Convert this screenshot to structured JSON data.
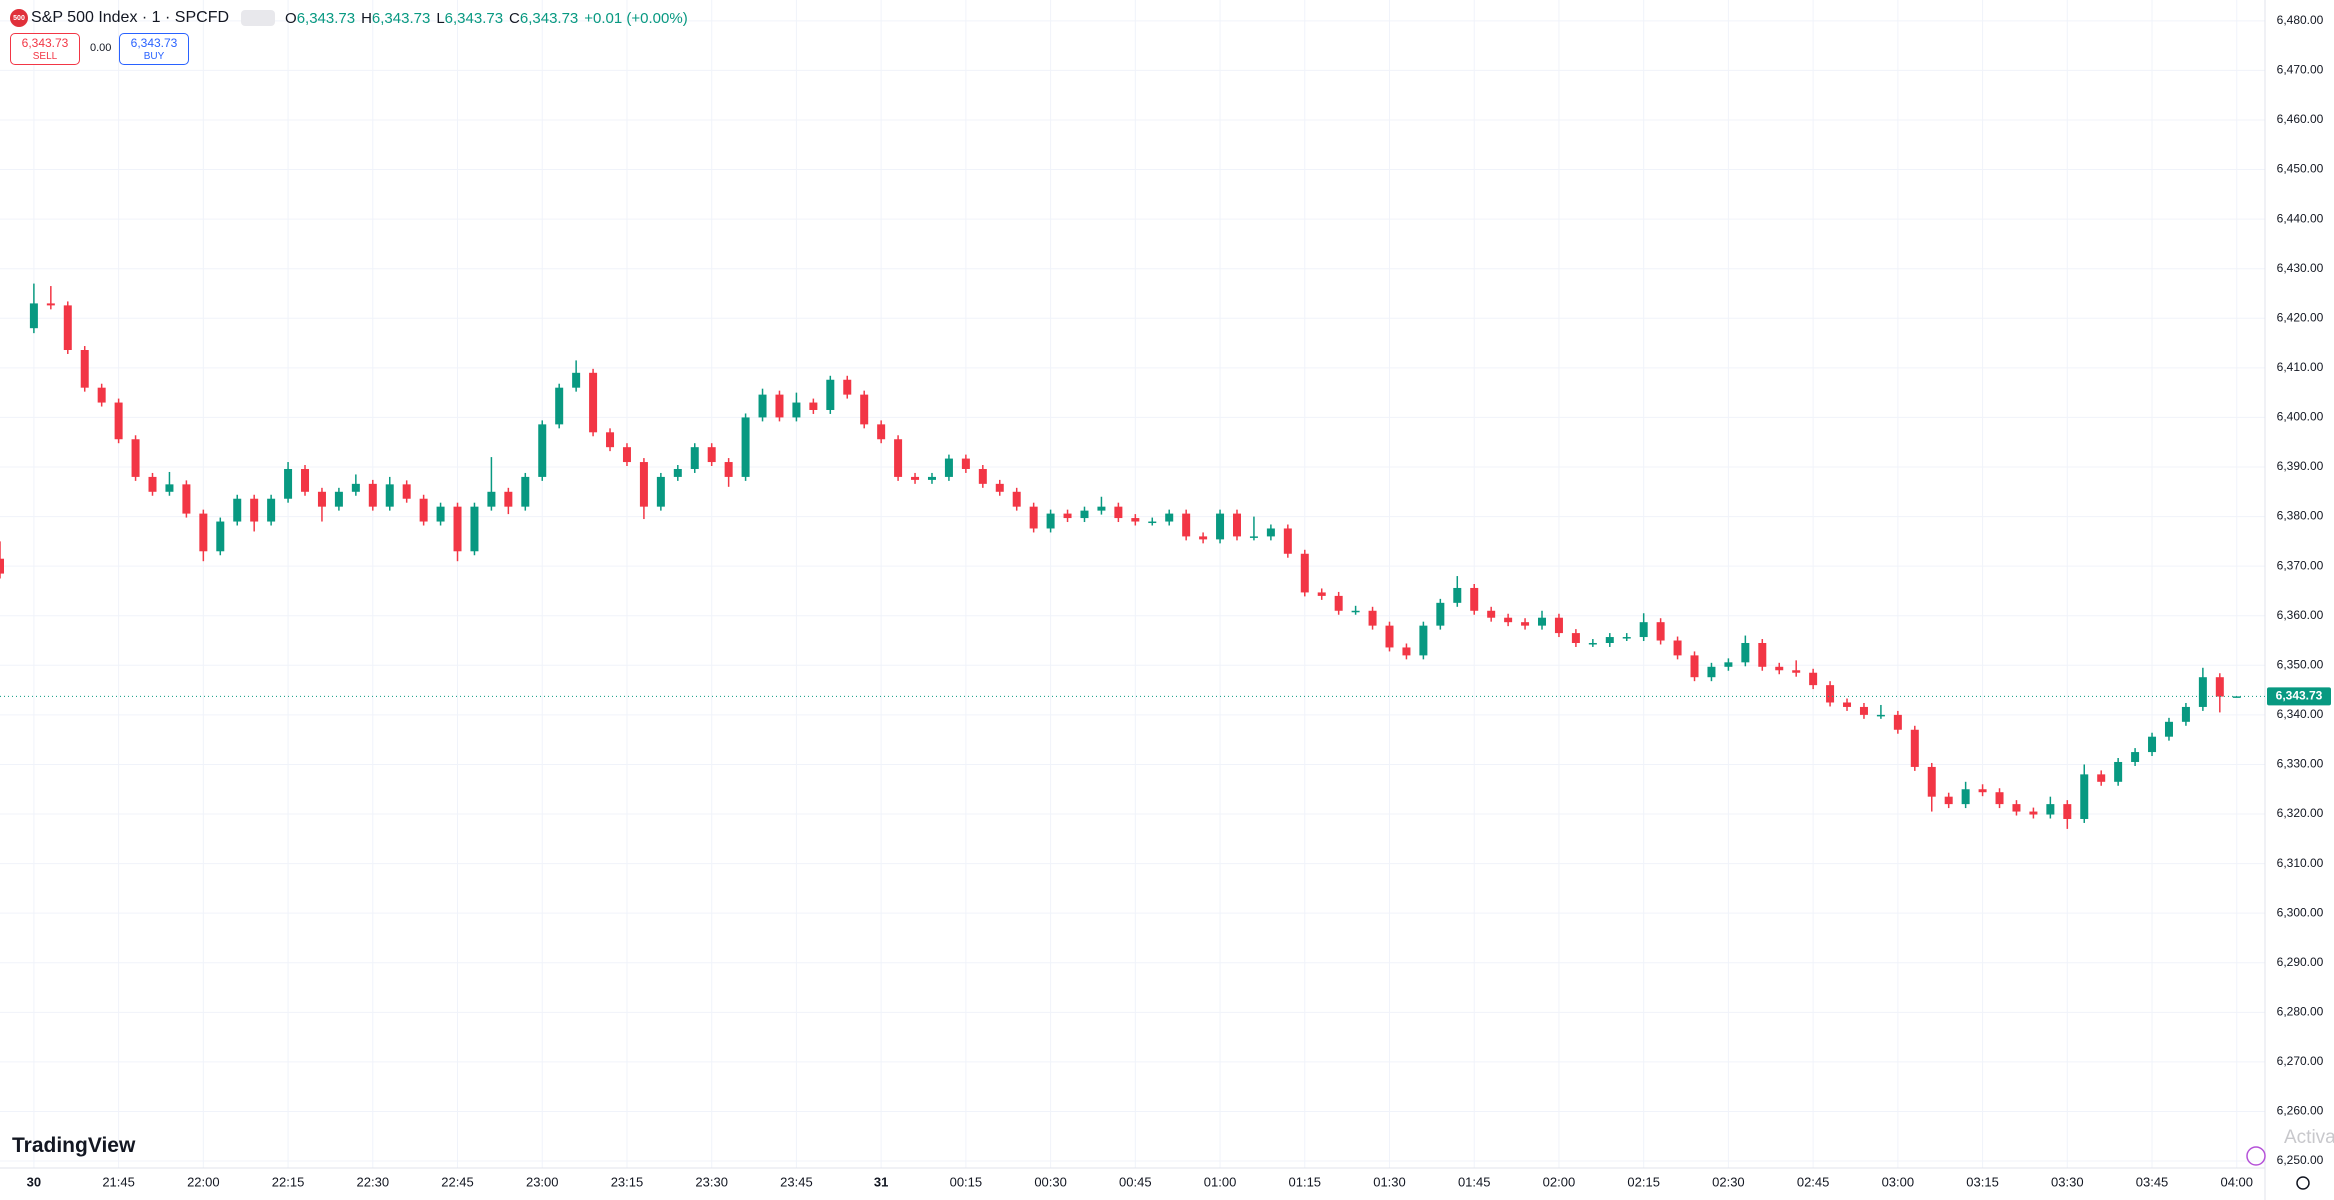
{
  "header": {
    "logo": "500",
    "symbol": "S&P 500 Index · 1 · SPCFD",
    "o_label": "O",
    "o_value": "6,343.73",
    "h_label": "H",
    "h_value": "6,343.73",
    "l_label": "L",
    "l_value": "6,343.73",
    "c_label": "C",
    "c_value": "6,343.73",
    "change": "+0.01 (+0.00%)",
    "sell_price": "6,343.73",
    "sell_label": "SELL",
    "spread": "0.00",
    "buy_price": "6,343.73",
    "buy_label": "BUY"
  },
  "branding": "TradingView",
  "watermark": "Activa",
  "chart_data": {
    "type": "candlestick",
    "up_color": "#089981",
    "down_color": "#f23645",
    "grid": true,
    "xlim": [
      "21:24",
      "04:05"
    ],
    "xticks": [
      {
        "value": "21:30",
        "label": "30"
      },
      "21:45",
      "22:00",
      "22:15",
      "22:30",
      "22:45",
      "23:00",
      "23:15",
      "23:30",
      "23:45",
      {
        "value": "00:00",
        "label": "31"
      },
      "00:15",
      "00:30",
      "00:45",
      "01:00",
      "01:15",
      "01:30",
      "01:45",
      "02:00",
      "02:15",
      "02:30",
      "02:45",
      "03:00",
      "03:15",
      "03:30",
      "03:45",
      "04:00"
    ],
    "ylim": [
      6248.6,
      6484.2
    ],
    "yticks": [
      {
        "value": 6250,
        "label": "6,250.00"
      },
      {
        "value": 6260,
        "label": "6,260.00"
      },
      {
        "value": 6270,
        "label": "6,270.00"
      },
      {
        "value": 6280,
        "label": "6,280.00"
      },
      {
        "value": 6290,
        "label": "6,290.00"
      },
      {
        "value": 6300,
        "label": "6,300.00"
      },
      {
        "value": 6310,
        "label": "6,310.00"
      },
      {
        "value": 6320,
        "label": "6,320.00"
      },
      {
        "value": 6330,
        "label": "6,330.00"
      },
      {
        "value": 6340,
        "label": "6,340.00"
      },
      {
        "value": 6350,
        "label": "6,350.00"
      },
      {
        "value": 6360,
        "label": "6,360.00"
      },
      {
        "value": 6370,
        "label": "6,370.00"
      },
      {
        "value": 6380,
        "label": "6,380.00"
      },
      {
        "value": 6390,
        "label": "6,390.00"
      },
      {
        "value": 6400,
        "label": "6,400.00"
      },
      {
        "value": 6410,
        "label": "6,410.00"
      },
      {
        "value": 6420,
        "label": "6,420.00"
      },
      {
        "value": 6430,
        "label": "6,430.00"
      },
      {
        "value": 6440,
        "label": "6,440.00"
      },
      {
        "value": 6450,
        "label": "6,450.00"
      },
      {
        "value": 6460,
        "label": "6,460.00"
      },
      {
        "value": 6470,
        "label": "6,470.00"
      },
      {
        "value": 6480,
        "label": "6,480.00"
      }
    ],
    "last_price": {
      "value": 6343.73,
      "label": "6,343.73"
    },
    "times": [
      "21:24",
      "21:30",
      "21:33",
      "21:36",
      "21:39",
      "21:42",
      "21:45",
      "21:48",
      "21:51",
      "21:54",
      "21:57",
      "22:00",
      "22:03",
      "22:06",
      "22:09",
      "22:12",
      "22:15",
      "22:18",
      "22:21",
      "22:24",
      "22:27",
      "22:30",
      "22:33",
      "22:36",
      "22:39",
      "22:42",
      "22:45",
      "22:48",
      "22:51",
      "22:54",
      "22:57",
      "23:00",
      "23:03",
      "23:06",
      "23:09",
      "23:12",
      "23:15",
      "23:18",
      "23:21",
      "23:24",
      "23:27",
      "23:30",
      "23:33",
      "23:36",
      "23:39",
      "23:42",
      "23:45",
      "23:48",
      "23:51",
      "23:54",
      "23:57",
      "00:00",
      "00:03",
      "00:06",
      "00:09",
      "00:12",
      "00:15",
      "00:18",
      "00:21",
      "00:24",
      "00:27",
      "00:30",
      "00:33",
      "00:36",
      "00:39",
      "00:42",
      "00:45",
      "00:48",
      "00:51",
      "00:54",
      "00:57",
      "01:00",
      "01:03",
      "01:06",
      "01:09",
      "01:12",
      "01:15",
      "01:18",
      "01:21",
      "01:24",
      "01:27",
      "01:30",
      "01:33",
      "01:36",
      "01:39",
      "01:42",
      "01:45",
      "01:48",
      "01:51",
      "01:54",
      "01:57",
      "02:00",
      "02:03",
      "02:06",
      "02:09",
      "02:12",
      "02:15",
      "02:18",
      "02:21",
      "02:24",
      "02:27",
      "02:30",
      "02:33",
      "02:36",
      "02:39",
      "02:42",
      "02:45",
      "02:48",
      "02:51",
      "02:54",
      "02:57",
      "03:00",
      "03:03",
      "03:06",
      "03:09",
      "03:12",
      "03:15",
      "03:18",
      "03:21",
      "03:24",
      "03:27",
      "03:30",
      "03:33",
      "03:36",
      "03:39",
      "03:42",
      "03:45",
      "03:48",
      "03:51",
      "03:54",
      "03:57",
      "04:00"
    ],
    "ohlc": [
      [
        6371.5,
        6375.0,
        6367.5,
        6368.5
      ],
      [
        6418.0,
        6427.0,
        6417.0,
        6423.0
      ],
      [
        6423.0,
        6426.5,
        6421.8,
        6422.6
      ],
      [
        6422.6,
        6423.4,
        6412.8,
        6413.6
      ],
      [
        6413.6,
        6414.4,
        6405.2,
        6406.0
      ],
      [
        6406.0,
        6406.8,
        6402.2,
        6403.0
      ],
      [
        6403.0,
        6403.8,
        6394.8,
        6395.6
      ],
      [
        6395.6,
        6396.4,
        6387.2,
        6388.0
      ],
      [
        6388.0,
        6388.8,
        6384.2,
        6385.0
      ],
      [
        6385.0,
        6389.0,
        6384.2,
        6386.5
      ],
      [
        6386.5,
        6387.3,
        6379.8,
        6380.6
      ],
      [
        6380.6,
        6381.4,
        6371.0,
        6373.0
      ],
      [
        6373.0,
        6379.8,
        6372.2,
        6379.0
      ],
      [
        6379.0,
        6384.4,
        6378.2,
        6383.6
      ],
      [
        6383.6,
        6384.4,
        6377.0,
        6379.0
      ],
      [
        6379.0,
        6384.4,
        6378.2,
        6383.6
      ],
      [
        6383.6,
        6391.0,
        6382.8,
        6389.6
      ],
      [
        6389.6,
        6390.4,
        6384.2,
        6385.0
      ],
      [
        6385.0,
        6385.8,
        6379.0,
        6382.0
      ],
      [
        6382.0,
        6385.8,
        6381.2,
        6385.0
      ],
      [
        6385.0,
        6388.5,
        6384.2,
        6386.6
      ],
      [
        6386.6,
        6387.4,
        6381.2,
        6382.0
      ],
      [
        6382.0,
        6388.0,
        6381.2,
        6386.5
      ],
      [
        6386.5,
        6387.3,
        6382.8,
        6383.6
      ],
      [
        6383.6,
        6384.4,
        6378.2,
        6379.0
      ],
      [
        6379.0,
        6382.8,
        6378.2,
        6382.0
      ],
      [
        6382.0,
        6382.8,
        6371.0,
        6373.0
      ],
      [
        6373.0,
        6382.8,
        6372.2,
        6382.0
      ],
      [
        6382.0,
        6392.0,
        6381.2,
        6385.0
      ],
      [
        6385.0,
        6385.8,
        6380.5,
        6382.0
      ],
      [
        6382.0,
        6388.8,
        6381.2,
        6388.0
      ],
      [
        6388.0,
        6399.4,
        6387.2,
        6398.6
      ],
      [
        6398.6,
        6406.8,
        6397.8,
        6406.0
      ],
      [
        6406.0,
        6411.5,
        6405.2,
        6409.0
      ],
      [
        6409.0,
        6409.8,
        6396.2,
        6397.0
      ],
      [
        6397.0,
        6397.8,
        6393.2,
        6394.0
      ],
      [
        6394.0,
        6394.8,
        6390.2,
        6391.0
      ],
      [
        6391.0,
        6391.8,
        6379.5,
        6382.0
      ],
      [
        6382.0,
        6388.8,
        6381.2,
        6388.0
      ],
      [
        6388.0,
        6390.4,
        6387.2,
        6389.6
      ],
      [
        6389.6,
        6394.8,
        6388.8,
        6394.0
      ],
      [
        6394.0,
        6394.8,
        6390.2,
        6391.0
      ],
      [
        6391.0,
        6391.8,
        6386.0,
        6388.0
      ],
      [
        6388.0,
        6400.8,
        6387.2,
        6400.0
      ],
      [
        6400.0,
        6405.8,
        6399.2,
        6404.6
      ],
      [
        6404.6,
        6405.4,
        6399.2,
        6400.0
      ],
      [
        6400.0,
        6405.0,
        6399.2,
        6403.0
      ],
      [
        6403.0,
        6403.8,
        6400.7,
        6401.5
      ],
      [
        6401.5,
        6408.4,
        6400.7,
        6407.6
      ],
      [
        6407.6,
        6408.4,
        6403.8,
        6404.6
      ],
      [
        6404.6,
        6405.4,
        6397.8,
        6398.6
      ],
      [
        6398.6,
        6399.4,
        6394.8,
        6395.6
      ],
      [
        6395.6,
        6396.4,
        6387.2,
        6388.0
      ],
      [
        6388.0,
        6388.8,
        6386.6,
        6387.4
      ],
      [
        6387.4,
        6388.8,
        6386.6,
        6388.0
      ],
      [
        6388.0,
        6392.5,
        6387.2,
        6391.7
      ],
      [
        6391.7,
        6392.5,
        6388.8,
        6389.6
      ],
      [
        6389.6,
        6390.4,
        6385.8,
        6386.6
      ],
      [
        6386.6,
        6387.4,
        6384.2,
        6385.0
      ],
      [
        6385.0,
        6385.8,
        6381.2,
        6382.0
      ],
      [
        6382.0,
        6382.8,
        6376.8,
        6377.6
      ],
      [
        6377.6,
        6381.4,
        6376.8,
        6380.6
      ],
      [
        6380.6,
        6381.4,
        6378.9,
        6379.7
      ],
      [
        6379.7,
        6382.0,
        6378.9,
        6381.2
      ],
      [
        6381.2,
        6384.0,
        6380.4,
        6382.0
      ],
      [
        6382.0,
        6382.8,
        6378.9,
        6379.7
      ],
      [
        6379.7,
        6380.5,
        6378.2,
        6379.0
      ],
      [
        6379.0,
        6379.8,
        6378.2,
        6379.0
      ],
      [
        6379.0,
        6381.4,
        6378.2,
        6380.6
      ],
      [
        6380.6,
        6381.4,
        6375.2,
        6376.0
      ],
      [
        6376.0,
        6376.8,
        6374.6,
        6375.4
      ],
      [
        6375.4,
        6381.4,
        6374.6,
        6380.6
      ],
      [
        6380.6,
        6381.4,
        6375.2,
        6376.0
      ],
      [
        6376.0,
        6380.0,
        6375.2,
        6376.0
      ],
      [
        6376.0,
        6378.4,
        6375.2,
        6377.6
      ],
      [
        6377.6,
        6378.4,
        6371.7,
        6372.5
      ],
      [
        6372.5,
        6373.3,
        6363.9,
        6364.7
      ],
      [
        6364.7,
        6365.5,
        6363.2,
        6364.0
      ],
      [
        6364.0,
        6364.8,
        6360.2,
        6361.0
      ],
      [
        6361.0,
        6362.0,
        6360.2,
        6361.0
      ],
      [
        6361.0,
        6361.8,
        6357.2,
        6358.0
      ],
      [
        6358.0,
        6358.8,
        6352.8,
        6353.6
      ],
      [
        6353.6,
        6354.4,
        6351.2,
        6352.0
      ],
      [
        6352.0,
        6358.8,
        6351.2,
        6358.0
      ],
      [
        6358.0,
        6363.4,
        6357.2,
        6362.6
      ],
      [
        6362.6,
        6368.0,
        6361.8,
        6365.6
      ],
      [
        6365.6,
        6366.4,
        6360.2,
        6361.0
      ],
      [
        6361.0,
        6361.8,
        6358.8,
        6359.6
      ],
      [
        6359.6,
        6360.4,
        6357.9,
        6358.7
      ],
      [
        6358.7,
        6359.5,
        6357.2,
        6358.0
      ],
      [
        6358.0,
        6361.0,
        6357.2,
        6359.6
      ],
      [
        6359.6,
        6360.4,
        6355.7,
        6356.5
      ],
      [
        6356.5,
        6357.3,
        6353.7,
        6354.5
      ],
      [
        6354.5,
        6355.3,
        6353.7,
        6354.5
      ],
      [
        6354.5,
        6356.5,
        6353.7,
        6355.7
      ],
      [
        6355.7,
        6356.5,
        6354.9,
        6355.7
      ],
      [
        6355.7,
        6360.5,
        6354.9,
        6358.7
      ],
      [
        6358.7,
        6359.5,
        6354.2,
        6355.0
      ],
      [
        6355.0,
        6355.8,
        6351.2,
        6352.0
      ],
      [
        6352.0,
        6352.8,
        6346.8,
        6347.6
      ],
      [
        6347.6,
        6350.5,
        6346.8,
        6349.7
      ],
      [
        6349.7,
        6351.4,
        6348.9,
        6350.6
      ],
      [
        6350.6,
        6356.0,
        6349.8,
        6354.5
      ],
      [
        6354.5,
        6355.3,
        6348.9,
        6349.7
      ],
      [
        6349.7,
        6350.5,
        6348.2,
        6349.0
      ],
      [
        6349.0,
        6351.0,
        6347.7,
        6348.5
      ],
      [
        6348.5,
        6349.3,
        6345.2,
        6346.0
      ],
      [
        6346.0,
        6346.8,
        6341.7,
        6342.5
      ],
      [
        6342.5,
        6343.3,
        6340.8,
        6341.6
      ],
      [
        6341.6,
        6342.4,
        6339.2,
        6340.0
      ],
      [
        6340.0,
        6342.0,
        6339.2,
        6340.0
      ],
      [
        6340.0,
        6340.8,
        6336.2,
        6337.0
      ],
      [
        6337.0,
        6337.8,
        6328.7,
        6329.5
      ],
      [
        6329.5,
        6330.3,
        6320.5,
        6323.5
      ],
      [
        6323.5,
        6324.3,
        6321.2,
        6322.0
      ],
      [
        6322.0,
        6326.5,
        6321.2,
        6325.0
      ],
      [
        6325.0,
        6326.0,
        6323.6,
        6324.4
      ],
      [
        6324.4,
        6325.2,
        6321.2,
        6322.0
      ],
      [
        6322.0,
        6322.8,
        6319.7,
        6320.5
      ],
      [
        6320.5,
        6321.3,
        6319.1,
        6319.9
      ],
      [
        6319.9,
        6323.5,
        6319.1,
        6322.0
      ],
      [
        6322.0,
        6322.8,
        6317.0,
        6319.0
      ],
      [
        6319.0,
        6330.0,
        6318.2,
        6328.0
      ],
      [
        6328.0,
        6328.8,
        6325.7,
        6326.5
      ],
      [
        6326.5,
        6331.3,
        6325.7,
        6330.5
      ],
      [
        6330.5,
        6333.3,
        6329.7,
        6332.5
      ],
      [
        6332.5,
        6336.4,
        6331.7,
        6335.6
      ],
      [
        6335.6,
        6339.4,
        6334.8,
        6338.6
      ],
      [
        6338.6,
        6342.4,
        6337.8,
        6341.6
      ],
      [
        6341.6,
        6349.5,
        6340.8,
        6347.6
      ],
      [
        6347.6,
        6348.4,
        6340.5,
        6343.7
      ],
      [
        6343.73,
        6343.73,
        6343.73,
        6343.73
      ]
    ]
  }
}
